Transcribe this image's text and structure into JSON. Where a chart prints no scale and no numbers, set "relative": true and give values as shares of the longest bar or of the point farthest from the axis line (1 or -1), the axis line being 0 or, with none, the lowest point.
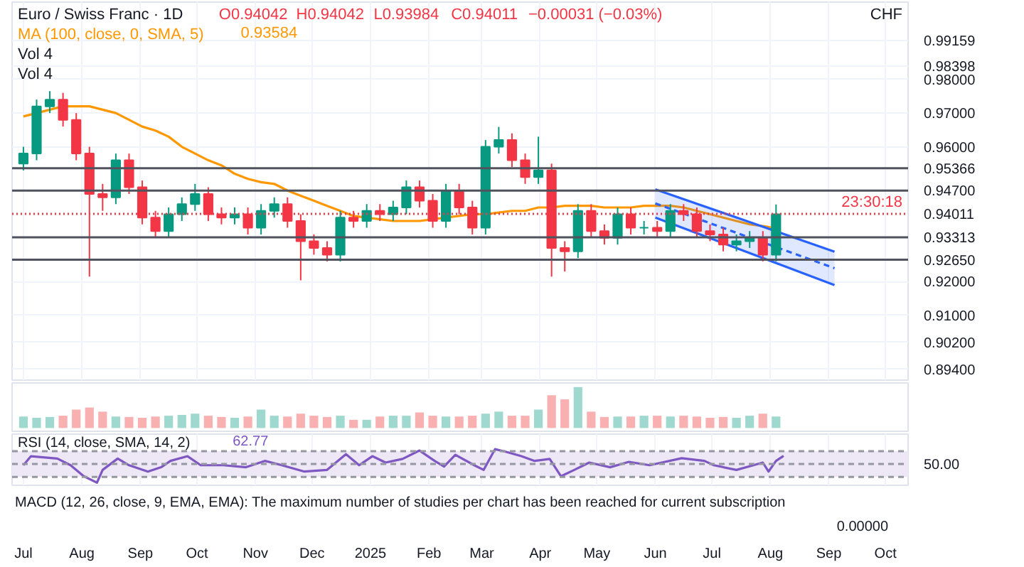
{
  "chart_data": [
    {
      "type": "candlestick",
      "title": "Euro / Swiss Franc · 1D",
      "x": [
        "2024-07-01",
        "2024-07-08",
        "2024-07-15",
        "2024-07-22",
        "2024-07-29",
        "2024-08-05",
        "2024-08-12",
        "2024-08-19",
        "2024-08-26",
        "2024-09-02",
        "2024-09-09",
        "2024-09-16",
        "2024-09-23",
        "2024-09-30",
        "2024-10-07",
        "2024-10-14",
        "2024-10-21",
        "2024-10-28",
        "2024-11-04",
        "2024-11-11",
        "2024-11-18",
        "2024-11-25",
        "2024-12-02",
        "2024-12-09",
        "2024-12-16",
        "2024-12-23",
        "2024-12-30",
        "2025-01-06",
        "2025-01-13",
        "2025-01-20",
        "2025-01-27",
        "2025-02-03",
        "2025-02-10",
        "2025-02-17",
        "2025-02-24",
        "2025-03-03",
        "2025-03-10",
        "2025-03-17",
        "2025-03-24",
        "2025-03-31",
        "2025-04-07",
        "2025-04-14",
        "2025-04-21",
        "2025-04-28",
        "2025-05-05",
        "2025-05-12",
        "2025-05-19",
        "2025-05-26",
        "2025-06-02",
        "2025-06-09",
        "2025-06-16",
        "2025-06-23",
        "2025-06-30",
        "2025-07-07",
        "2025-07-14",
        "2025-07-21",
        "2025-07-28",
        "2025-08-04"
      ],
      "ohlc": [
        [
          0.955,
          0.96,
          0.953,
          0.958
        ],
        [
          0.958,
          0.974,
          0.956,
          0.972
        ],
        [
          0.972,
          0.9765,
          0.97,
          0.974
        ],
        [
          0.974,
          0.976,
          0.966,
          0.968
        ],
        [
          0.968,
          0.97,
          0.956,
          0.958
        ],
        [
          0.958,
          0.96,
          0.9215,
          0.946
        ],
        [
          0.946,
          0.949,
          0.941,
          0.945
        ],
        [
          0.945,
          0.958,
          0.943,
          0.956
        ],
        [
          0.956,
          0.958,
          0.946,
          0.948
        ],
        [
          0.948,
          0.95,
          0.937,
          0.939
        ],
        [
          0.939,
          0.941,
          0.933,
          0.935
        ],
        [
          0.935,
          0.942,
          0.933,
          0.94
        ],
        [
          0.94,
          0.945,
          0.938,
          0.943
        ],
        [
          0.943,
          0.949,
          0.941,
          0.946
        ],
        [
          0.946,
          0.948,
          0.938,
          0.94
        ],
        [
          0.94,
          0.942,
          0.937,
          0.939
        ],
        [
          0.939,
          0.942,
          0.937,
          0.94
        ],
        [
          0.94,
          0.942,
          0.934,
          0.936
        ],
        [
          0.936,
          0.943,
          0.934,
          0.941
        ],
        [
          0.941,
          0.945,
          0.939,
          0.943
        ],
        [
          0.943,
          0.945,
          0.936,
          0.938
        ],
        [
          0.938,
          0.94,
          0.9204,
          0.932
        ],
        [
          0.932,
          0.934,
          0.928,
          0.93
        ],
        [
          0.93,
          0.932,
          0.926,
          0.928
        ],
        [
          0.928,
          0.941,
          0.926,
          0.939
        ],
        [
          0.939,
          0.941,
          0.936,
          0.938
        ],
        [
          0.938,
          0.943,
          0.936,
          0.941
        ],
        [
          0.941,
          0.943,
          0.938,
          0.94
        ],
        [
          0.94,
          0.944,
          0.938,
          0.942
        ],
        [
          0.942,
          0.95,
          0.94,
          0.948
        ],
        [
          0.948,
          0.95,
          0.942,
          0.944
        ],
        [
          0.944,
          0.946,
          0.936,
          0.938
        ],
        [
          0.938,
          0.949,
          0.936,
          0.947
        ],
        [
          0.947,
          0.949,
          0.94,
          0.942
        ],
        [
          0.942,
          0.944,
          0.934,
          0.936
        ],
        [
          0.936,
          0.962,
          0.934,
          0.96
        ],
        [
          0.96,
          0.9659,
          0.958,
          0.962
        ],
        [
          0.962,
          0.964,
          0.954,
          0.956
        ],
        [
          0.956,
          0.958,
          0.949,
          0.951
        ],
        [
          0.951,
          0.963,
          0.949,
          0.953
        ],
        [
          0.953,
          0.955,
          0.9215,
          0.93
        ],
        [
          0.93,
          0.932,
          0.923,
          0.929
        ],
        [
          0.929,
          0.943,
          0.927,
          0.941
        ],
        [
          0.941,
          0.943,
          0.933,
          0.935
        ],
        [
          0.935,
          0.937,
          0.931,
          0.933
        ],
        [
          0.933,
          0.942,
          0.931,
          0.94
        ],
        [
          0.94,
          0.942,
          0.934,
          0.936
        ],
        [
          0.936,
          0.938,
          0.934,
          0.936
        ],
        [
          0.936,
          0.938,
          0.933,
          0.935
        ],
        [
          0.935,
          0.943,
          0.933,
          0.941
        ],
        [
          0.941,
          0.943,
          0.938,
          0.94
        ],
        [
          0.94,
          0.942,
          0.933,
          0.935
        ],
        [
          0.935,
          0.937,
          0.932,
          0.934
        ],
        [
          0.934,
          0.936,
          0.929,
          0.931
        ],
        [
          0.931,
          0.934,
          0.929,
          0.932
        ],
        [
          0.932,
          0.935,
          0.93,
          0.933
        ],
        [
          0.933,
          0.935,
          0.926,
          0.928
        ],
        [
          0.928,
          0.9429,
          0.926,
          0.94
        ]
      ],
      "colors": [
        "#089981",
        "#089981",
        "#089981",
        "#f23645",
        "#f23645",
        "#f23645",
        "#f23645",
        "#089981",
        "#f23645",
        "#f23645",
        "#f23645",
        "#089981",
        "#089981",
        "#089981",
        "#f23645",
        "#f23645",
        "#089981",
        "#f23645",
        "#089981",
        "#089981",
        "#f23645",
        "#f23645",
        "#f23645",
        "#f23645",
        "#089981",
        "#f23645",
        "#089981",
        "#f23645",
        "#089981",
        "#089981",
        "#f23645",
        "#f23645",
        "#089981",
        "#f23645",
        "#f23645",
        "#089981",
        "#089981",
        "#f23645",
        "#f23645",
        "#089981",
        "#f23645",
        "#f23645",
        "#089981",
        "#f23645",
        "#f23645",
        "#089981",
        "#f23645",
        "#089981",
        "#f23645",
        "#089981",
        "#f23645",
        "#f23645",
        "#f23645",
        "#f23645",
        "#089981",
        "#089981",
        "#f23645",
        "#089981"
      ],
      "series": [
        {
          "type": "line",
          "name": "MA (100, close, 0, SMA, 5)",
          "color": "#ff9800",
          "x": [
            "2024-07-01",
            "2024-07-08",
            "2024-07-15",
            "2024-07-22",
            "2024-07-29",
            "2024-08-05",
            "2024-08-12",
            "2024-08-19",
            "2024-08-26",
            "2024-09-02",
            "2024-09-09",
            "2024-09-16",
            "2024-09-23",
            "2024-09-30",
            "2024-10-07",
            "2024-10-14",
            "2024-10-21",
            "2024-10-28",
            "2024-11-04",
            "2024-11-11",
            "2024-11-18",
            "2024-11-25",
            "2024-12-02",
            "2024-12-09",
            "2024-12-16",
            "2024-12-23",
            "2024-12-30",
            "2025-01-06",
            "2025-01-13",
            "2025-01-20",
            "2025-01-27",
            "2025-02-03",
            "2025-02-10",
            "2025-02-17",
            "2025-02-24",
            "2025-03-03",
            "2025-03-10",
            "2025-03-17",
            "2025-03-24",
            "2025-03-31",
            "2025-04-07",
            "2025-04-14",
            "2025-04-21",
            "2025-04-28",
            "2025-05-05",
            "2025-05-12",
            "2025-05-19",
            "2025-05-26",
            "2025-06-02",
            "2025-06-09",
            "2025-06-16",
            "2025-06-23",
            "2025-06-30",
            "2025-07-07",
            "2025-07-14",
            "2025-07-21",
            "2025-07-28",
            "2025-08-04"
          ],
          "values": [
            0.969,
            0.97,
            0.971,
            0.972,
            0.972,
            0.972,
            0.971,
            0.97,
            0.968,
            0.966,
            0.9648,
            0.963,
            0.96,
            0.958,
            0.956,
            0.9545,
            0.952,
            0.9505,
            0.9495,
            0.949,
            0.947,
            0.9455,
            0.944,
            0.9425,
            0.941,
            0.9395,
            0.939,
            0.9385,
            0.938,
            0.938,
            0.938,
            0.9385,
            0.939,
            0.9395,
            0.94,
            0.94,
            0.9405,
            0.941,
            0.941,
            0.942,
            0.942,
            0.9425,
            0.9425,
            0.9425,
            0.942,
            0.942,
            0.942,
            0.9425,
            0.9425,
            0.9425,
            0.942,
            0.941,
            0.94,
            0.939,
            0.938,
            0.937,
            0.9365,
            0.9358
          ]
        },
        {
          "type": "line",
          "color": "#2962ff",
          "x": [
            "2025-06-01",
            "2025-09-04"
          ],
          "values": [
            0.9474,
            0.9289
          ]
        },
        {
          "type": "line",
          "color": "#2962ff",
          "x": [
            "2025-06-01",
            "2025-09-04"
          ],
          "values": [
            0.939,
            0.919
          ]
        },
        {
          "type": "line",
          "color": "#2962ff",
          "line_style": "dashed",
          "x": [
            "2025-06-01",
            "2025-09-04"
          ],
          "values": [
            0.9432,
            0.924
          ],
          "lower": [
            0.939,
            0.919
          ],
          "upper": [
            0.9474,
            0.9289
          ]
        }
      ],
      "xlim": [
        "2024-06-25",
        "2025-10-13"
      ],
      "xticks": [
        {
          "value": "2024-07-01",
          "label": null
        },
        {
          "value": "2024-08-01",
          "label": null
        },
        {
          "value": "2024-09-01",
          "label": null
        },
        {
          "value": "2024-10-01",
          "label": null
        },
        {
          "value": "2024-11-01",
          "label": null
        },
        {
          "value": "2024-12-01",
          "label": null
        },
        {
          "value": "2025-01-01",
          "label": null
        },
        {
          "value": "2025-02-01",
          "label": null
        },
        {
          "value": "2025-03-01",
          "label": null
        },
        {
          "value": "2025-04-01",
          "label": null
        },
        {
          "value": "2025-05-01",
          "label": null
        },
        {
          "value": "2025-06-01",
          "label": null
        },
        {
          "value": "2025-07-01",
          "label": null
        },
        {
          "value": "2025-08-01",
          "label": null
        },
        {
          "value": "2025-09-01",
          "label": null
        },
        {
          "value": "2025-10-01",
          "label": null
        }
      ],
      "ylim": [
        0.8908,
        1.0029
      ],
      "yticks": [
        {
          "value": 0.894,
          "label": "0.89400"
        },
        {
          "value": 0.902,
          "label": "0.90200"
        },
        {
          "value": 0.91,
          "label": "0.91000"
        },
        {
          "value": 0.92,
          "label": "0.92000"
        },
        {
          "value": 0.96,
          "label": "0.96000"
        },
        {
          "value": 0.97,
          "label": "0.97000"
        },
        {
          "value": 0.98,
          "label": "0.98000"
        },
        0.98398,
        0.99159
      ],
      "ref_lines": [
        {
          "axis": "y",
          "value": 0.95366,
          "label": "0.95366",
          "color": "#50535e"
        },
        {
          "axis": "y",
          "value": 0.947,
          "label": "0.94700",
          "color": "#50535e"
        },
        {
          "axis": "y",
          "value": 0.93313,
          "label": "0.93313",
          "color": "#50535e"
        },
        {
          "axis": "y",
          "value": 0.9265,
          "label": "0.92650",
          "color": "#50535e"
        },
        {
          "axis": "y",
          "value": 0.94011,
          "label": "0.94011",
          "color": "#f23645",
          "line_style": "dotted"
        }
      ],
      "annotations": [
        "O0.94042",
        "H0.94042",
        "L0.93984",
        "C0.94011",
        "−0.00031 (−0.03%)",
        "0.93584",
        "Vol 4",
        "Vol 4",
        "CHF",
        "23:30:18"
      ],
      "grid": true,
      "tick_labels": "y"
    },
    {
      "type": "bar",
      "relative": true,
      "x": [
        "2024-07-01",
        "2024-07-08",
        "2024-07-15",
        "2024-07-22",
        "2024-07-29",
        "2024-08-05",
        "2024-08-12",
        "2024-08-19",
        "2024-08-26",
        "2024-09-02",
        "2024-09-09",
        "2024-09-16",
        "2024-09-23",
        "2024-09-30",
        "2024-10-07",
        "2024-10-14",
        "2024-10-21",
        "2024-10-28",
        "2024-11-04",
        "2024-11-11",
        "2024-11-18",
        "2024-11-25",
        "2024-12-02",
        "2024-12-09",
        "2024-12-16",
        "2024-12-23",
        "2024-12-30",
        "2025-01-06",
        "2025-01-13",
        "2025-01-20",
        "2025-01-27",
        "2025-02-03",
        "2025-02-10",
        "2025-02-17",
        "2025-02-24",
        "2025-03-03",
        "2025-03-10",
        "2025-03-17",
        "2025-03-24",
        "2025-03-31",
        "2025-04-07",
        "2025-04-14",
        "2025-04-21",
        "2025-04-28",
        "2025-05-05",
        "2025-05-12",
        "2025-05-19",
        "2025-05-26",
        "2025-06-02",
        "2025-06-09",
        "2025-06-16",
        "2025-06-23",
        "2025-06-30",
        "2025-07-07",
        "2025-07-14",
        "2025-07-21",
        "2025-07-28",
        "2025-08-04"
      ],
      "values": [
        0.28,
        0.25,
        0.27,
        0.3,
        0.45,
        0.5,
        0.4,
        0.28,
        0.27,
        0.25,
        0.28,
        0.3,
        0.32,
        0.35,
        0.3,
        0.27,
        0.25,
        0.28,
        0.45,
        0.3,
        0.28,
        0.35,
        0.3,
        0.27,
        0.3,
        0.2,
        0.2,
        0.28,
        0.3,
        0.3,
        0.38,
        0.3,
        0.28,
        0.28,
        0.3,
        0.35,
        0.4,
        0.3,
        0.3,
        0.45,
        0.8,
        0.7,
        1.0,
        0.4,
        0.27,
        0.28,
        0.28,
        0.3,
        0.3,
        0.28,
        0.3,
        0.28,
        0.25,
        0.27,
        0.25,
        0.3,
        0.35,
        0.28
      ],
      "colors": [
        "#9fd8cf",
        "#9fd8cf",
        "#9fd8cf",
        "#f8b0b0",
        "#f8b0b0",
        "#f8b0b0",
        "#f8b0b0",
        "#9fd8cf",
        "#f8b0b0",
        "#f8b0b0",
        "#f8b0b0",
        "#9fd8cf",
        "#9fd8cf",
        "#9fd8cf",
        "#f8b0b0",
        "#f8b0b0",
        "#9fd8cf",
        "#f8b0b0",
        "#9fd8cf",
        "#9fd8cf",
        "#f8b0b0",
        "#f8b0b0",
        "#f8b0b0",
        "#f8b0b0",
        "#9fd8cf",
        "#f8b0b0",
        "#9fd8cf",
        "#f8b0b0",
        "#9fd8cf",
        "#9fd8cf",
        "#f8b0b0",
        "#f8b0b0",
        "#9fd8cf",
        "#f8b0b0",
        "#f8b0b0",
        "#9fd8cf",
        "#9fd8cf",
        "#f8b0b0",
        "#f8b0b0",
        "#9fd8cf",
        "#f8b0b0",
        "#f8b0b0",
        "#9fd8cf",
        "#f8b0b0",
        "#f8b0b0",
        "#9fd8cf",
        "#f8b0b0",
        "#9fd8cf",
        "#f8b0b0",
        "#9fd8cf",
        "#f8b0b0",
        "#f8b0b0",
        "#f8b0b0",
        "#f8b0b0",
        "#9fd8cf",
        "#9fd8cf",
        "#f8b0b0",
        "#9fd8cf"
      ],
      "xlim": [
        "2024-06-25",
        "2025-10-13"
      ],
      "grid": "x",
      "tick_labels": false
    },
    {
      "type": "line",
      "title": "RSI (14, close, SMA, 14, 2)",
      "relative": true,
      "series": [
        {
          "color": "#7e57c2",
          "x": [
            "2024-07-01",
            "2024-07-05",
            "2024-07-19",
            "2024-07-26",
            "2024-08-02",
            "2024-08-09",
            "2024-08-12",
            "2024-08-20",
            "2024-08-26",
            "2024-09-05",
            "2024-09-12",
            "2024-09-17",
            "2024-09-26",
            "2024-10-03",
            "2024-10-15",
            "2024-10-27",
            "2024-11-06",
            "2024-11-15",
            "2024-11-27",
            "2024-12-09",
            "2024-12-19",
            "2024-12-26",
            "2025-01-02",
            "2025-01-09",
            "2025-01-18",
            "2025-01-27",
            "2025-02-04",
            "2025-02-09",
            "2025-02-15",
            "2025-02-25",
            "2025-03-02",
            "2025-03-08",
            "2025-03-14",
            "2025-03-22",
            "2025-03-29",
            "2025-04-06",
            "2025-04-12",
            "2025-04-19",
            "2025-04-27",
            "2025-05-08",
            "2025-05-18",
            "2025-05-29",
            "2025-06-15",
            "2025-06-27",
            "2025-07-02",
            "2025-07-14",
            "2025-07-23",
            "2025-07-28",
            "2025-07-31",
            "2025-08-04",
            "2025-08-08"
          ],
          "values": [
            0.52,
            0.79,
            0.72,
            0.52,
            0.19,
            0,
            0.38,
            0.72,
            0.52,
            0.33,
            0.46,
            0.65,
            0.79,
            0.52,
            0.52,
            0.46,
            0.65,
            0.52,
            0.33,
            0.38,
            0.85,
            0.52,
            0.79,
            0.6,
            0.71,
            0.96,
            0.65,
            0.48,
            0.83,
            0.52,
            0.38,
            1,
            0.92,
            0.79,
            0.65,
            0.71,
            0.19,
            0.38,
            0.6,
            0.46,
            0.62,
            0.52,
            0.73,
            0.65,
            0.52,
            0.38,
            0.52,
            0.6,
            0.33,
            0.65,
            0.8
          ]
        }
      ],
      "ref_lines": [
        {
          "axis": "y",
          "value": 0.94,
          "color": "#9598a1",
          "line_style": "dashed"
        },
        {
          "axis": "y",
          "value": 0.56,
          "color": "#9598a1",
          "line_style": "dashed"
        },
        {
          "axis": "y",
          "value": 0.17,
          "color": "#9598a1",
          "line_style": "dashed"
        }
      ],
      "bands": [
        {
          "axis": "y",
          "from": 0.17,
          "to": 0.94,
          "color": "#ede7f6"
        }
      ],
      "annotations": [
        "62.77",
        "50.00",
        "MACD (12, 26, close, 9, EMA, EMA): The maximum number of studies per chart has been reached for current subscription",
        "0.00000"
      ],
      "xlim": [
        "2024-06-25",
        "2025-10-13"
      ],
      "xticks": [
        {
          "value": "2024-07-01",
          "label": "Jul"
        },
        {
          "value": "2024-08-01",
          "label": "Aug"
        },
        {
          "value": "2024-09-01",
          "label": "Sep"
        },
        {
          "value": "2024-10-01",
          "label": "Oct"
        },
        {
          "value": "2024-11-01",
          "label": "Nov"
        },
        {
          "value": "2024-12-01",
          "label": "Dec"
        },
        {
          "value": "2025-01-01",
          "label": "2025"
        },
        {
          "value": "2025-02-01",
          "label": "Feb"
        },
        {
          "value": "2025-03-01",
          "label": "Mar"
        },
        {
          "value": "2025-04-01",
          "label": "Apr"
        },
        {
          "value": "2025-05-01",
          "label": "May"
        },
        {
          "value": "2025-06-01",
          "label": "Jun"
        },
        {
          "value": "2025-07-01",
          "label": "Jul"
        },
        {
          "value": "2025-08-01",
          "label": "Aug"
        },
        {
          "value": "2025-09-01",
          "label": "Sep"
        },
        {
          "value": "2025-10-01",
          "label": "Oct"
        }
      ],
      "grid": "x"
    }
  ]
}
